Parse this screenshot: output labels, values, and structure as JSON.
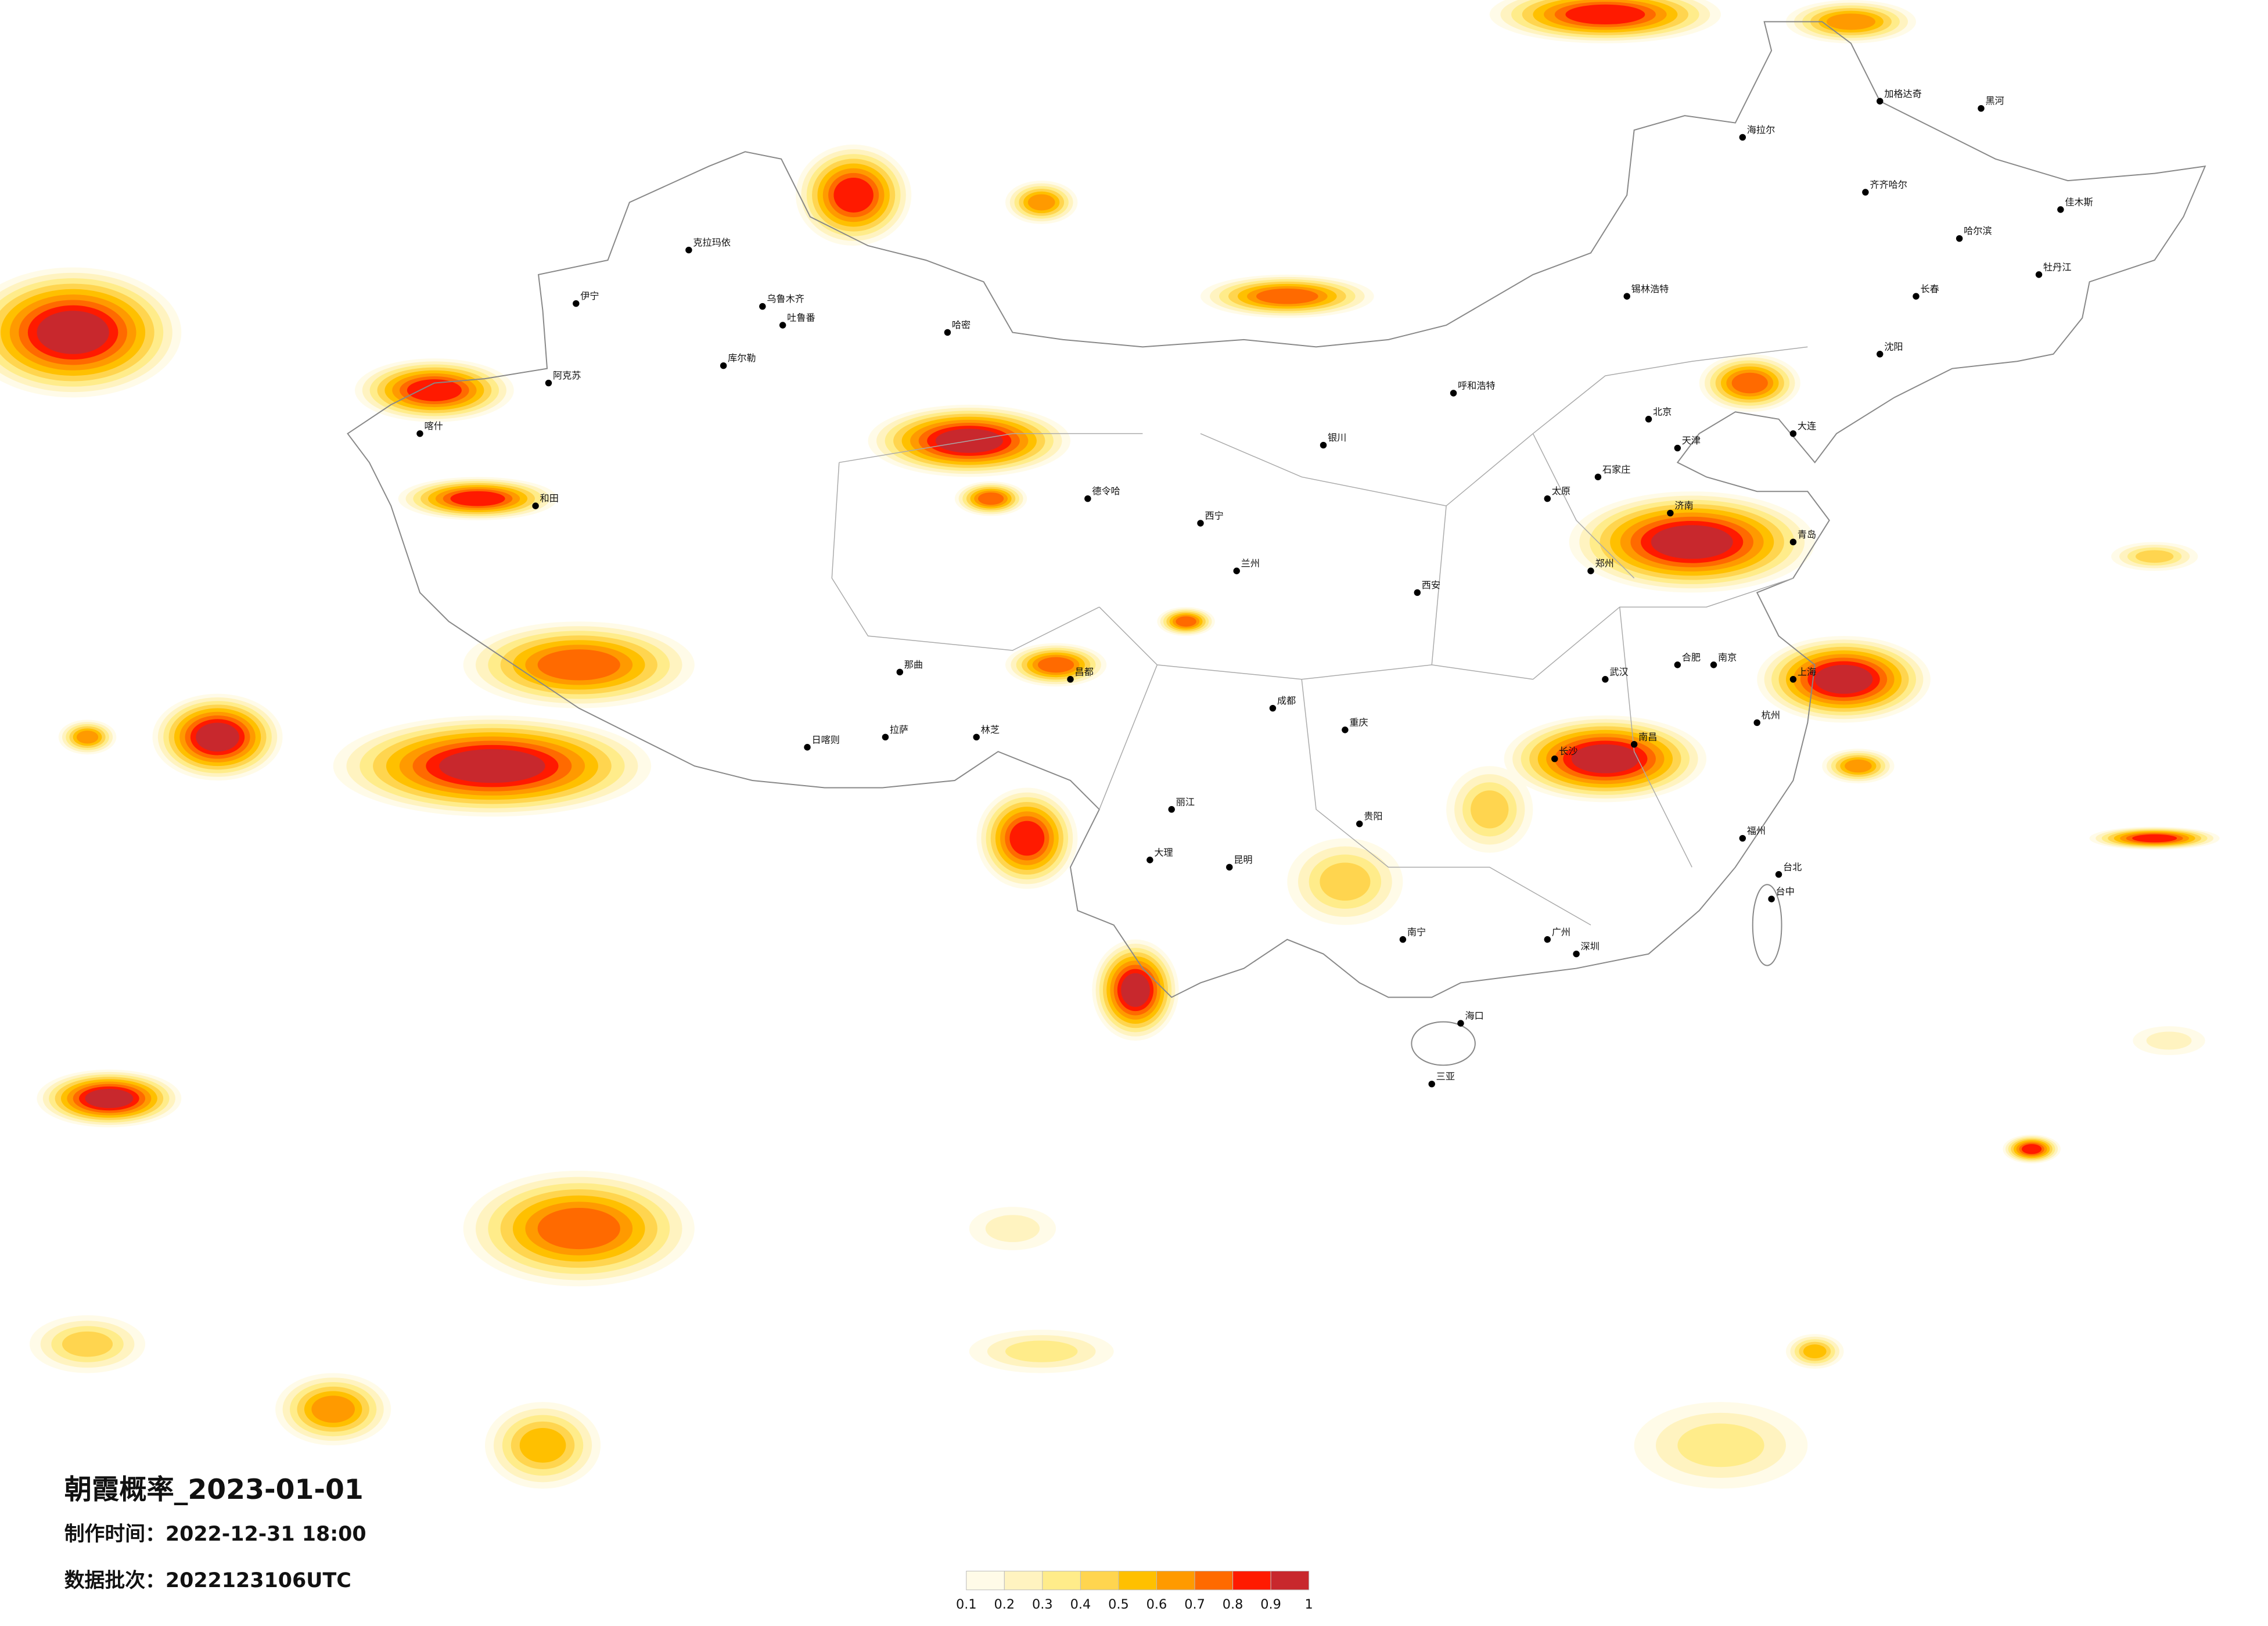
{
  "title": "朝霞概率_2023-01-01",
  "production_time": "制作时间：2022-12-31 18:00",
  "data_batch": "数据批次：2022123106UTC",
  "colorbar": {
    "ticks": [
      0.1,
      0.2,
      0.3,
      0.4,
      0.5,
      0.6,
      0.7,
      0.8,
      0.9,
      1
    ],
    "colors": [
      "#fffbe8",
      "#fff3c0",
      "#ffec8a",
      "#ffd54f",
      "#ffc000",
      "#ff9a00",
      "#ff6a00",
      "#ff1a00",
      "#c8282d"
    ]
  },
  "cities": [
    "伊宁",
    "克拉玛依",
    "乌鲁木齐",
    "吐鲁番",
    "哈密",
    "库尔勒",
    "阿克苏",
    "喀什",
    "和田",
    "德令哈",
    "拉萨",
    "日喀则",
    "西宁",
    "兰州",
    "银川",
    "呼和浩特",
    "北京",
    "天津",
    "石家庄",
    "太原",
    "济南",
    "郑州",
    "西安",
    "武汉",
    "南京",
    "上海",
    "杭州",
    "合肥",
    "南昌",
    "长沙",
    "福州",
    "广州",
    "深圳",
    "南宁",
    "海口",
    "三亚",
    "贵阳",
    "昆明",
    "成都",
    "重庆",
    "哈尔滨",
    "长春",
    "沈阳",
    "大连",
    "青岛",
    "台北",
    "台中",
    "海拉尔",
    "齐齐哈尔",
    "加格达奇",
    "黑河",
    "佳木斯",
    "牡丹江",
    "锡林浩特",
    "大理",
    "丽江",
    "那曲",
    "林芝",
    "昌都"
  ]
}
